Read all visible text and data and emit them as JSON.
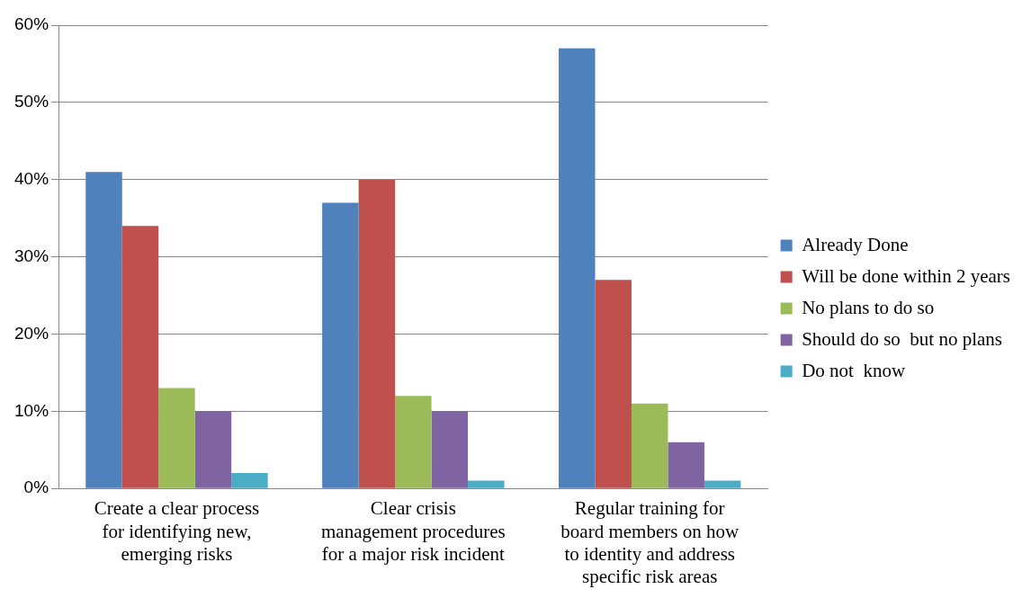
{
  "chart_data": {
    "type": "bar",
    "categories": [
      "Create a clear process for identifying new, emerging risks",
      "Clear crisis management procedures for a major risk incident",
      "Regular training for board members on how to identity and address specific risk areas"
    ],
    "series": [
      {
        "name": "Already Done",
        "color": "#4f81bd",
        "values": [
          41,
          37,
          57
        ]
      },
      {
        "name": "Will be done within 2 years",
        "color": "#c0504d",
        "values": [
          34,
          40,
          27
        ]
      },
      {
        "name": "No plans to do so",
        "color": "#9bbb59",
        "values": [
          13,
          12,
          11
        ]
      },
      {
        "name": "Should do so  but no plans",
        "color": "#8064a2",
        "values": [
          10,
          10,
          6
        ]
      },
      {
        "name": "Do not  know",
        "color": "#4bacc6",
        "values": [
          2,
          1,
          1
        ]
      }
    ],
    "ylim": [
      0,
      60
    ],
    "yticks": [
      {
        "value": 0,
        "label": "0%"
      },
      {
        "value": 10,
        "label": "10%"
      },
      {
        "value": 20,
        "label": "20%"
      },
      {
        "value": 30,
        "label": "30%"
      },
      {
        "value": 40,
        "label": "40%"
      },
      {
        "value": 50,
        "label": "50%"
      },
      {
        "value": 60,
        "label": "60%"
      }
    ],
    "grid": "y",
    "legend": "right"
  }
}
